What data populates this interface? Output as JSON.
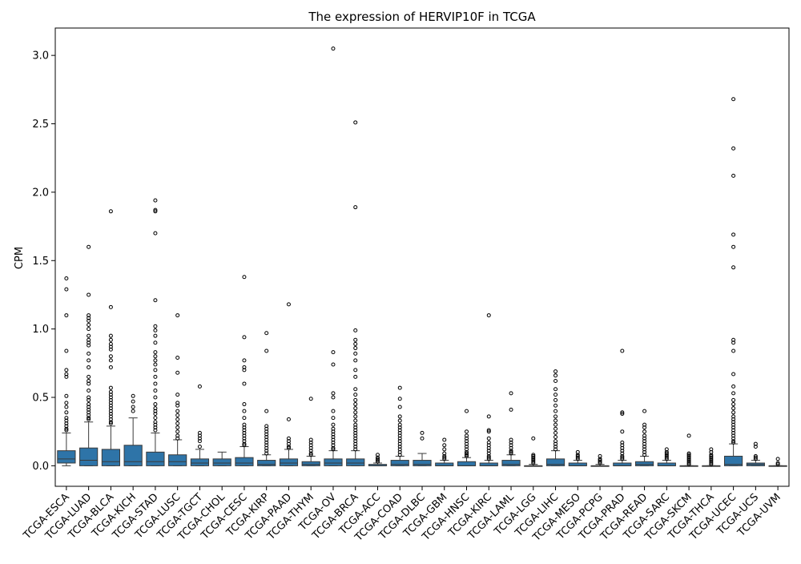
{
  "chart_data": {
    "type": "box",
    "title": "The expression of HERVIP10F in TCGA",
    "xlabel": "",
    "ylabel": "CPM",
    "ylim": [
      -0.15,
      3.2
    ],
    "yticks": [
      0.0,
      0.5,
      1.0,
      1.5,
      2.0,
      2.5,
      3.0
    ],
    "ytick_labels": [
      "0.0",
      "0.5",
      "1.0",
      "1.5",
      "2.0",
      "2.5",
      "3.0"
    ],
    "grid": false,
    "box_color": "#2e74a8",
    "categories": [
      "TCGA-ESCA",
      "TCGA-LUAD",
      "TCGA-BLCA",
      "TCGA-KICH",
      "TCGA-STAD",
      "TCGA-LUSC",
      "TCGA-TGCT",
      "TCGA-CHOL",
      "TCGA-CESC",
      "TCGA-KIRP",
      "TCGA-PAAD",
      "TCGA-THYM",
      "TCGA-OV",
      "TCGA-BRCA",
      "TCGA-ACC",
      "TCGA-COAD",
      "TCGA-DLBC",
      "TCGA-GBM",
      "TCGA-HNSC",
      "TCGA-KIRC",
      "TCGA-LAML",
      "TCGA-LGG",
      "TCGA-LIHC",
      "TCGA-MESO",
      "TCGA-PCPG",
      "TCGA-PRAD",
      "TCGA-READ",
      "TCGA-SARC",
      "TCGA-SKCM",
      "TCGA-THCA",
      "TCGA-UCEC",
      "TCGA-UCS",
      "TCGA-UVM"
    ],
    "boxes": [
      {
        "min": 0.0,
        "q1": 0.02,
        "median": 0.05,
        "q3": 0.11,
        "max": 0.24,
        "outliers": [
          1.37,
          1.29,
          1.1,
          0.84,
          0.7,
          0.67,
          0.65,
          0.51,
          0.46,
          0.43,
          0.39,
          0.35,
          0.33,
          0.31,
          0.29,
          0.27,
          0.26
        ]
      },
      {
        "min": 0.0,
        "q1": 0.0,
        "median": 0.04,
        "q3": 0.13,
        "max": 0.32,
        "outliers": [
          1.6,
          1.25,
          1.1,
          1.08,
          1.06,
          1.03,
          1.0,
          0.95,
          0.92,
          0.9,
          0.88,
          0.82,
          0.77,
          0.72,
          0.65,
          0.62,
          0.6,
          0.55,
          0.5,
          0.48,
          0.45,
          0.43,
          0.41,
          0.39,
          0.37,
          0.35,
          0.34
        ]
      },
      {
        "min": 0.0,
        "q1": 0.0,
        "median": 0.03,
        "q3": 0.12,
        "max": 0.29,
        "outliers": [
          1.86,
          1.16,
          0.95,
          0.92,
          0.89,
          0.87,
          0.85,
          0.8,
          0.77,
          0.72,
          0.57,
          0.54,
          0.52,
          0.5,
          0.48,
          0.46,
          0.44,
          0.42,
          0.4,
          0.38,
          0.36,
          0.34,
          0.32,
          0.31
        ]
      },
      {
        "min": 0.0,
        "q1": 0.0,
        "median": 0.03,
        "q3": 0.15,
        "max": 0.35,
        "outliers": [
          0.51,
          0.47,
          0.43,
          0.4
        ]
      },
      {
        "min": 0.0,
        "q1": 0.0,
        "median": 0.03,
        "q3": 0.1,
        "max": 0.24,
        "outliers": [
          1.94,
          1.87,
          1.86,
          1.7,
          1.21,
          1.02,
          0.99,
          0.95,
          0.9,
          0.83,
          0.8,
          0.77,
          0.74,
          0.7,
          0.65,
          0.6,
          0.55,
          0.5,
          0.45,
          0.42,
          0.4,
          0.38,
          0.35,
          0.32,
          0.3,
          0.28,
          0.26
        ]
      },
      {
        "min": 0.0,
        "q1": 0.0,
        "median": 0.03,
        "q3": 0.08,
        "max": 0.19,
        "outliers": [
          1.1,
          0.79,
          0.68,
          0.52,
          0.46,
          0.44,
          0.4,
          0.37,
          0.34,
          0.31,
          0.28,
          0.25,
          0.22,
          0.2
        ]
      },
      {
        "min": 0.0,
        "q1": 0.0,
        "median": 0.02,
        "q3": 0.05,
        "max": 0.12,
        "outliers": [
          0.58,
          0.24,
          0.22,
          0.2,
          0.18,
          0.14
        ]
      },
      {
        "min": 0.0,
        "q1": 0.0,
        "median": 0.02,
        "q3": 0.05,
        "max": 0.1,
        "outliers": []
      },
      {
        "min": 0.0,
        "q1": 0.0,
        "median": 0.02,
        "q3": 0.06,
        "max": 0.14,
        "outliers": [
          1.38,
          0.94,
          0.77,
          0.72,
          0.7,
          0.6,
          0.45,
          0.4,
          0.35,
          0.3,
          0.28,
          0.26,
          0.24,
          0.22,
          0.2,
          0.18,
          0.16,
          0.15
        ]
      },
      {
        "min": 0.0,
        "q1": 0.0,
        "median": 0.01,
        "q3": 0.04,
        "max": 0.08,
        "outliers": [
          0.97,
          0.84,
          0.4,
          0.29,
          0.27,
          0.25,
          0.23,
          0.21,
          0.19,
          0.17,
          0.15,
          0.13,
          0.11,
          0.09
        ]
      },
      {
        "min": 0.0,
        "q1": 0.0,
        "median": 0.02,
        "q3": 0.05,
        "max": 0.12,
        "outliers": [
          1.18,
          0.34,
          0.2,
          0.18,
          0.16,
          0.14,
          0.13
        ]
      },
      {
        "min": 0.0,
        "q1": 0.0,
        "median": 0.01,
        "q3": 0.03,
        "max": 0.07,
        "outliers": [
          0.49,
          0.19,
          0.17,
          0.15,
          0.13,
          0.11,
          0.09,
          0.08
        ]
      },
      {
        "min": 0.0,
        "q1": 0.0,
        "median": 0.02,
        "q3": 0.05,
        "max": 0.11,
        "outliers": [
          3.05,
          0.83,
          0.74,
          0.53,
          0.5,
          0.4,
          0.35,
          0.3,
          0.27,
          0.25,
          0.23,
          0.21,
          0.19,
          0.17,
          0.15,
          0.13,
          0.12
        ]
      },
      {
        "min": 0.0,
        "q1": 0.0,
        "median": 0.02,
        "q3": 0.05,
        "max": 0.11,
        "outliers": [
          2.51,
          1.89,
          0.99,
          0.92,
          0.89,
          0.86,
          0.82,
          0.77,
          0.7,
          0.65,
          0.56,
          0.52,
          0.48,
          0.45,
          0.42,
          0.39,
          0.36,
          0.33,
          0.3,
          0.28,
          0.26,
          0.24,
          0.22,
          0.2,
          0.18,
          0.16,
          0.14,
          0.12
        ]
      },
      {
        "min": 0.0,
        "q1": 0.0,
        "median": 0.0,
        "q3": 0.01,
        "max": 0.02,
        "outliers": [
          0.08,
          0.06,
          0.05,
          0.04,
          0.03
        ]
      },
      {
        "min": 0.0,
        "q1": 0.0,
        "median": 0.01,
        "q3": 0.04,
        "max": 0.07,
        "outliers": [
          0.57,
          0.49,
          0.43,
          0.36,
          0.33,
          0.3,
          0.28,
          0.26,
          0.24,
          0.22,
          0.2,
          0.18,
          0.16,
          0.14,
          0.12,
          0.1,
          0.08
        ]
      },
      {
        "min": 0.0,
        "q1": 0.0,
        "median": 0.01,
        "q3": 0.04,
        "max": 0.09,
        "outliers": [
          0.24,
          0.2
        ]
      },
      {
        "min": 0.0,
        "q1": 0.0,
        "median": 0.0,
        "q3": 0.02,
        "max": 0.04,
        "outliers": [
          0.19,
          0.15,
          0.12,
          0.09,
          0.07,
          0.06,
          0.05
        ]
      },
      {
        "min": 0.0,
        "q1": 0.0,
        "median": 0.0,
        "q3": 0.03,
        "max": 0.06,
        "outliers": [
          0.4,
          0.25,
          0.22,
          0.2,
          0.18,
          0.16,
          0.14,
          0.12,
          0.1,
          0.09,
          0.08,
          0.07
        ]
      },
      {
        "min": 0.0,
        "q1": 0.0,
        "median": 0.0,
        "q3": 0.02,
        "max": 0.04,
        "outliers": [
          1.1,
          0.36,
          0.26,
          0.25,
          0.2,
          0.17,
          0.15,
          0.13,
          0.11,
          0.09,
          0.07,
          0.06,
          0.05
        ]
      },
      {
        "min": 0.0,
        "q1": 0.0,
        "median": 0.01,
        "q3": 0.04,
        "max": 0.08,
        "outliers": [
          0.53,
          0.41,
          0.19,
          0.17,
          0.15,
          0.13,
          0.11,
          0.1,
          0.09
        ]
      },
      {
        "min": 0.0,
        "q1": 0.0,
        "median": 0.0,
        "q3": 0.0,
        "max": 0.01,
        "outliers": [
          0.2,
          0.08,
          0.07,
          0.06,
          0.05,
          0.04,
          0.03,
          0.02
        ]
      },
      {
        "min": 0.0,
        "q1": 0.0,
        "median": 0.01,
        "q3": 0.05,
        "max": 0.11,
        "outliers": [
          0.69,
          0.66,
          0.62,
          0.56,
          0.52,
          0.48,
          0.44,
          0.4,
          0.36,
          0.33,
          0.3,
          0.27,
          0.24,
          0.21,
          0.18,
          0.16,
          0.14,
          0.12
        ]
      },
      {
        "min": 0.0,
        "q1": 0.0,
        "median": 0.0,
        "q3": 0.02,
        "max": 0.04,
        "outliers": [
          0.1,
          0.08,
          0.07,
          0.06,
          0.05
        ]
      },
      {
        "min": 0.0,
        "q1": 0.0,
        "median": 0.0,
        "q3": 0.0,
        "max": 0.01,
        "outliers": [
          0.07,
          0.05,
          0.04,
          0.03,
          0.02
        ]
      },
      {
        "min": 0.0,
        "q1": 0.0,
        "median": 0.0,
        "q3": 0.02,
        "max": 0.04,
        "outliers": [
          0.84,
          0.39,
          0.38,
          0.25,
          0.17,
          0.15,
          0.13,
          0.11,
          0.09,
          0.07,
          0.06,
          0.05
        ]
      },
      {
        "min": 0.0,
        "q1": 0.0,
        "median": 0.01,
        "q3": 0.03,
        "max": 0.07,
        "outliers": [
          0.4,
          0.3,
          0.28,
          0.25,
          0.22,
          0.2,
          0.18,
          0.16,
          0.14,
          0.12,
          0.1,
          0.08
        ]
      },
      {
        "min": 0.0,
        "q1": 0.0,
        "median": 0.0,
        "q3": 0.02,
        "max": 0.04,
        "outliers": [
          0.12,
          0.1,
          0.09,
          0.08,
          0.07,
          0.06,
          0.05
        ]
      },
      {
        "min": 0.0,
        "q1": 0.0,
        "median": 0.0,
        "q3": 0.0,
        "max": 0.0,
        "outliers": [
          0.22,
          0.09,
          0.08,
          0.07,
          0.06,
          0.05,
          0.04,
          0.03,
          0.02,
          0.01
        ]
      },
      {
        "min": 0.0,
        "q1": 0.0,
        "median": 0.0,
        "q3": 0.0,
        "max": 0.0,
        "outliers": [
          0.12,
          0.1,
          0.08,
          0.07,
          0.06,
          0.05,
          0.04,
          0.03,
          0.02,
          0.01
        ]
      },
      {
        "min": 0.0,
        "q1": 0.0,
        "median": 0.01,
        "q3": 0.07,
        "max": 0.16,
        "outliers": [
          2.68,
          2.32,
          2.12,
          1.69,
          1.6,
          1.45,
          0.92,
          0.9,
          0.84,
          0.67,
          0.58,
          0.53,
          0.48,
          0.45,
          0.42,
          0.39,
          0.36,
          0.34,
          0.32,
          0.3,
          0.28,
          0.26,
          0.24,
          0.22,
          0.2,
          0.18,
          0.17
        ]
      },
      {
        "min": 0.0,
        "q1": 0.0,
        "median": 0.01,
        "q3": 0.02,
        "max": 0.04,
        "outliers": [
          0.16,
          0.14,
          0.07,
          0.06,
          0.05
        ]
      },
      {
        "min": 0.0,
        "q1": 0.0,
        "median": 0.0,
        "q3": 0.0,
        "max": 0.0,
        "outliers": [
          0.05,
          0.02,
          0.01
        ]
      }
    ]
  }
}
